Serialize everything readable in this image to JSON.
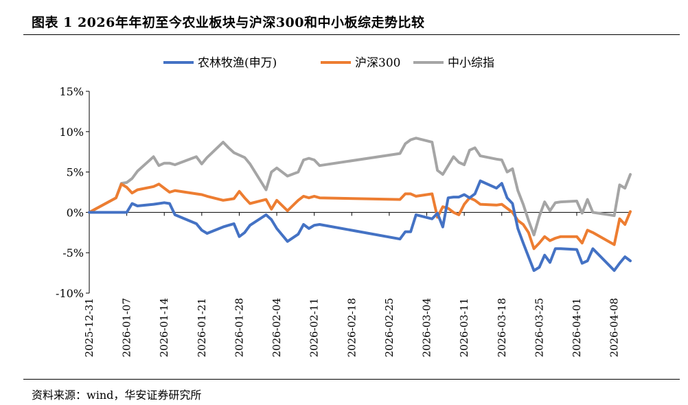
{
  "title": "图表 1 2026年年初至今农业板块与沪深300和中小板综走势比较",
  "source": "资料来源：wind，华安证券研究所",
  "chart_data": {
    "type": "line",
    "ylim": [
      -0.1,
      0.15
    ],
    "yticks": [
      -0.1,
      -0.05,
      0.0,
      0.05,
      0.1,
      0.15
    ],
    "ytick_labels": [
      "-10%",
      "-5%",
      "0%",
      "5%",
      "10%",
      "15%"
    ],
    "x_range": [
      0,
      101
    ],
    "xticks": [
      0,
      7,
      14,
      21,
      28,
      35,
      42,
      49,
      56,
      63,
      70,
      77,
      84,
      91,
      98
    ],
    "xtick_labels": [
      "2025-12-31",
      "2026-01-07",
      "2026-01-14",
      "2026-01-21",
      "2026-01-28",
      "2026-02-04",
      "2026-02-11",
      "2026-02-18",
      "2026-02-25",
      "2026-03-04",
      "2026-03-11",
      "2026-03-18",
      "2026-03-25",
      "2026-04-01",
      "2026-04-08"
    ],
    "legend_position": "top",
    "series": [
      {
        "name": "农林牧渔(申万)",
        "color": "#4472C4",
        "x": [
          0,
          5,
          6,
          7,
          8,
          9,
          12,
          13,
          14,
          15,
          16,
          20,
          21,
          22,
          25,
          26,
          27,
          28,
          29,
          30,
          33,
          34,
          35,
          37,
          39,
          40,
          41,
          42,
          43,
          58,
          59,
          60,
          61,
          64,
          65,
          66,
          67,
          68,
          69,
          70,
          71,
          72,
          73,
          76,
          77,
          78,
          79,
          80,
          81,
          82,
          83,
          84,
          85,
          86,
          87,
          88,
          91,
          92,
          93,
          94,
          98,
          99,
          100,
          101
        ],
        "y": [
          0,
          0,
          0,
          0,
          0.011,
          0.008,
          0.01,
          0.011,
          0.012,
          0.011,
          -0.003,
          -0.014,
          -0.022,
          -0.026,
          -0.018,
          -0.016,
          -0.014,
          -0.03,
          -0.025,
          -0.016,
          -0.003,
          -0.009,
          -0.02,
          -0.036,
          -0.027,
          -0.015,
          -0.02,
          -0.016,
          -0.015,
          -0.033,
          -0.024,
          -0.024,
          -0.003,
          -0.008,
          -0.001,
          -0.018,
          0.018,
          0.019,
          0.019,
          0.022,
          0.018,
          0.023,
          0.039,
          0.03,
          0.036,
          0.018,
          0.011,
          -0.02,
          -0.038,
          -0.055,
          -0.072,
          -0.068,
          -0.053,
          -0.062,
          -0.045,
          -0.045,
          -0.046,
          -0.063,
          -0.06,
          -0.045,
          -0.072,
          -0.063,
          -0.055,
          -0.06
        ]
      },
      {
        "name": "沪深300",
        "color": "#ED7D31",
        "x": [
          0,
          5,
          6,
          7,
          8,
          9,
          12,
          13,
          14,
          15,
          16,
          20,
          21,
          22,
          25,
          26,
          27,
          28,
          29,
          30,
          33,
          34,
          35,
          37,
          39,
          40,
          41,
          42,
          43,
          58,
          59,
          60,
          61,
          64,
          65,
          66,
          67,
          68,
          69,
          70,
          71,
          72,
          73,
          76,
          77,
          78,
          79,
          80,
          81,
          82,
          83,
          84,
          85,
          86,
          87,
          88,
          91,
          92,
          93,
          94,
          98,
          99,
          100,
          101
        ],
        "y": [
          0,
          0.018,
          0.035,
          0.031,
          0.024,
          0.028,
          0.032,
          0.035,
          0.03,
          0.025,
          0.027,
          0.023,
          0.022,
          0.02,
          0.015,
          0.016,
          0.017,
          0.026,
          0.018,
          0.011,
          0.016,
          0.004,
          0.015,
          0.002,
          0.015,
          0.02,
          0.018,
          0.02,
          0.018,
          0.016,
          0.023,
          0.023,
          0.02,
          0.023,
          -0.006,
          0.007,
          0.005,
          0.0,
          -0.003,
          0.01,
          0.018,
          0.015,
          0.01,
          0.009,
          0.01,
          0.005,
          0.0,
          -0.01,
          -0.015,
          -0.025,
          -0.045,
          -0.038,
          -0.03,
          -0.035,
          -0.032,
          -0.03,
          -0.03,
          -0.038,
          -0.022,
          -0.025,
          -0.04,
          -0.008,
          -0.015,
          0.001
        ]
      },
      {
        "name": "中小综指",
        "color": "#A5A5A5",
        "x": [
          0,
          5,
          6,
          7,
          8,
          9,
          12,
          13,
          14,
          15,
          16,
          20,
          21,
          22,
          25,
          26,
          27,
          28,
          29,
          30,
          33,
          34,
          35,
          37,
          39,
          40,
          41,
          42,
          43,
          58,
          59,
          60,
          61,
          64,
          65,
          66,
          67,
          68,
          69,
          70,
          71,
          72,
          73,
          76,
          77,
          78,
          79,
          80,
          81,
          82,
          83,
          84,
          85,
          86,
          87,
          88,
          91,
          92,
          93,
          94,
          98,
          99,
          100,
          101
        ],
        "y": [
          0,
          0.018,
          0.036,
          0.037,
          0.042,
          0.051,
          0.069,
          0.058,
          0.061,
          0.061,
          0.059,
          0.069,
          0.06,
          0.068,
          0.087,
          0.08,
          0.074,
          0.071,
          0.068,
          0.06,
          0.028,
          0.05,
          0.055,
          0.045,
          0.05,
          0.065,
          0.067,
          0.065,
          0.058,
          0.073,
          0.085,
          0.09,
          0.092,
          0.087,
          0.052,
          0.047,
          0.058,
          0.069,
          0.062,
          0.059,
          0.077,
          0.08,
          0.07,
          0.066,
          0.065,
          0.05,
          0.054,
          0.027,
          0.01,
          -0.01,
          -0.028,
          -0.005,
          0.013,
          0.002,
          0.012,
          0.013,
          0.014,
          -0.001,
          0.016,
          0.0,
          -0.004,
          0.034,
          0.03,
          0.047
        ]
      }
    ]
  }
}
